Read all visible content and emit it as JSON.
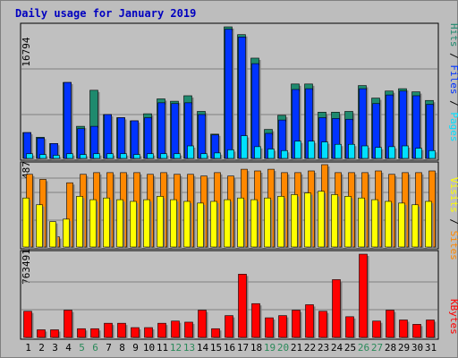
{
  "chart_data": {
    "title": "Daily usage for January 2019",
    "type": "bar",
    "categories": [
      "1",
      "2",
      "3",
      "4",
      "5",
      "6",
      "7",
      "8",
      "9",
      "10",
      "11",
      "12",
      "13",
      "14",
      "15",
      "16",
      "17",
      "18",
      "19",
      "20",
      "21",
      "22",
      "23",
      "24",
      "25",
      "26",
      "27",
      "28",
      "29",
      "30",
      "31"
    ],
    "weekend_days": [
      "5",
      "6",
      "12",
      "13",
      "19",
      "20",
      "26",
      "27"
    ],
    "panels": [
      {
        "id": "top",
        "ymax_label": "16794",
        "ymax": 16794,
        "right_labels": [
          "Pages",
          "Files",
          "Hits"
        ],
        "series": [
          {
            "name": "Hits",
            "values": [
              3300,
              2700,
              1900,
              9700,
              4100,
              8700,
              5600,
              5200,
              4800,
              5700,
              7600,
              7300,
              8000,
              6000,
              3100,
              16794,
              15800,
              12800,
              3700,
              5500,
              9500,
              9500,
              5900,
              5900,
              6000,
              9300,
              7700,
              8600,
              8900,
              8500,
              7400
            ]
          },
          {
            "name": "Files",
            "values": [
              3300,
              2600,
              1900,
              9700,
              3800,
              4100,
              5600,
              5200,
              4800,
              5200,
              7100,
              7000,
              7100,
              5600,
              3000,
              16500,
              15500,
              12100,
              3200,
              4900,
              8800,
              8900,
              5200,
              5100,
              5000,
              8900,
              7000,
              8100,
              8600,
              8000,
              6900
            ]
          },
          {
            "name": "Pages",
            "values": [
              600,
              500,
              400,
              600,
              500,
              600,
              600,
              600,
              500,
              600,
              600,
              600,
              1600,
              600,
              700,
              1100,
              2900,
              1500,
              1200,
              1000,
              2200,
              2200,
              2100,
              1800,
              1800,
              1600,
              1400,
              1500,
              1600,
              1300,
              1000
            ]
          }
        ]
      },
      {
        "id": "middle",
        "ymax_label": "487",
        "ymax": 487,
        "right_labels": [
          "Sites",
          "Visits"
        ],
        "series": [
          {
            "name": "Visits",
            "values": [
              290,
              250,
              150,
              165,
              300,
              280,
              290,
              280,
              270,
              280,
              300,
              280,
              270,
              260,
              270,
              280,
              290,
              280,
              290,
              300,
              310,
              320,
              330,
              310,
              300,
              290,
              280,
              270,
              260,
              250,
              270
            ]
          },
          {
            "name": "Sites",
            "values": [
              430,
              400,
              60,
              380,
              430,
              440,
              440,
              440,
              440,
              430,
              440,
              430,
              430,
              420,
              440,
              420,
              460,
              450,
              460,
              440,
              440,
              450,
              487,
              440,
              440,
              440,
              450,
              430,
              440,
              440,
              450
            ]
          }
        ]
      },
      {
        "id": "bottom",
        "ymax_label": "763491",
        "ymax": 763491,
        "right_labels": [
          "KBytes"
        ],
        "series": [
          {
            "name": "KBytes",
            "values": [
              240000,
              70000,
              70000,
              250000,
              80000,
              80000,
              130000,
              130000,
              90000,
              90000,
              130000,
              150000,
              140000,
              250000,
              80000,
              200000,
              580000,
              310000,
              180000,
              200000,
              250000,
              300000,
              240000,
              530000,
              190000,
              763491,
              150000,
              250000,
              160000,
              120000,
              160000
            ]
          }
        ]
      }
    ],
    "colors": {
      "hits": "#1f8a6e",
      "files": "#0033ff",
      "pages": "#00e0ff",
      "visits": "#ffff00",
      "sites": "#ff8800",
      "kbytes": "#ff0000",
      "title": "#0000c0",
      "weekend_label": "#2a8a5a",
      "weekday_label": "#000000",
      "panel_bg": "#c0c0c0",
      "frame": "#bdbdbd"
    }
  }
}
